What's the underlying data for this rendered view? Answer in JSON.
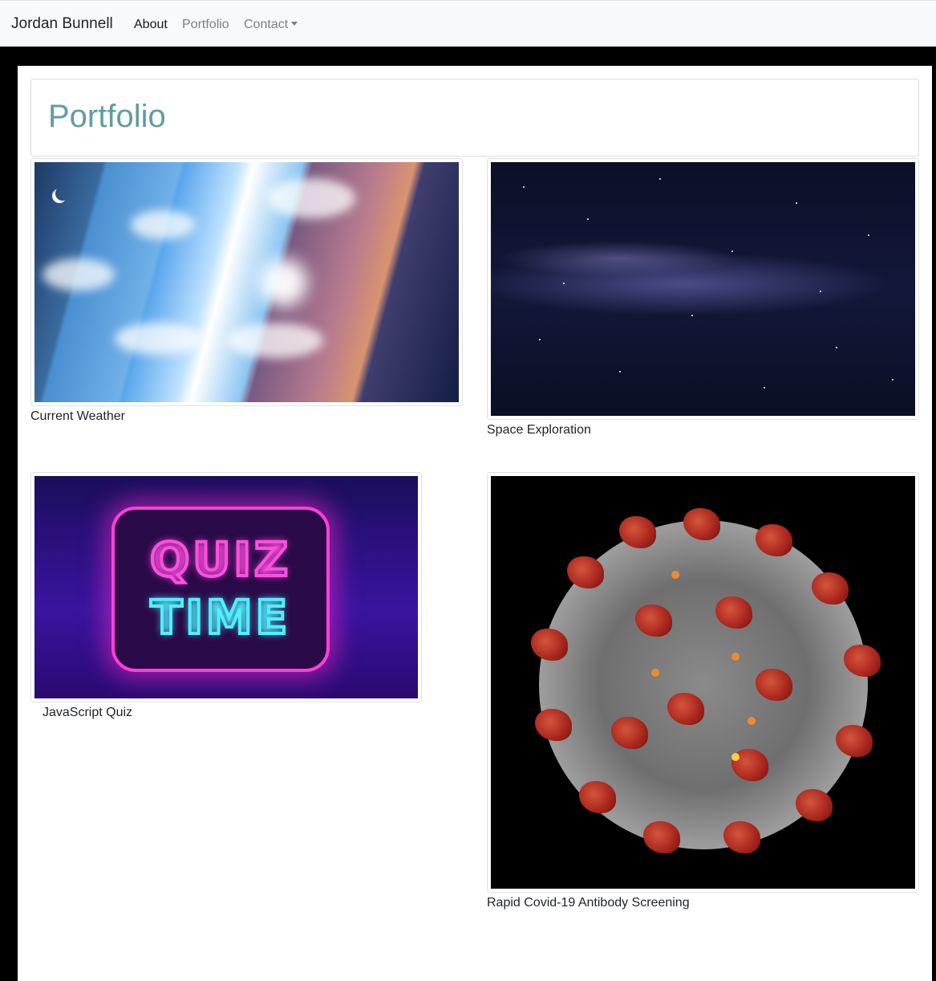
{
  "navbar": {
    "brand": "Jordan Bunnell",
    "links": [
      {
        "label": "About"
      },
      {
        "label": "Portfolio"
      },
      {
        "label": "Contact"
      }
    ]
  },
  "page": {
    "title": "Portfolio"
  },
  "projects": [
    {
      "caption": "Current Weather",
      "image": "weather-sky-collage"
    },
    {
      "caption": "Space Exploration",
      "image": "milky-way-starfield"
    },
    {
      "caption": "JavaScript Quiz",
      "image": "neon-quiz-time-sign"
    },
    {
      "caption": "Rapid Covid-19 Antibody Screening",
      "image": "coronavirus-illustration"
    }
  ],
  "colors": {
    "title": "#5f9ea0",
    "navbar_bg": "#f8f9fa",
    "page_bg": "#000000"
  }
}
